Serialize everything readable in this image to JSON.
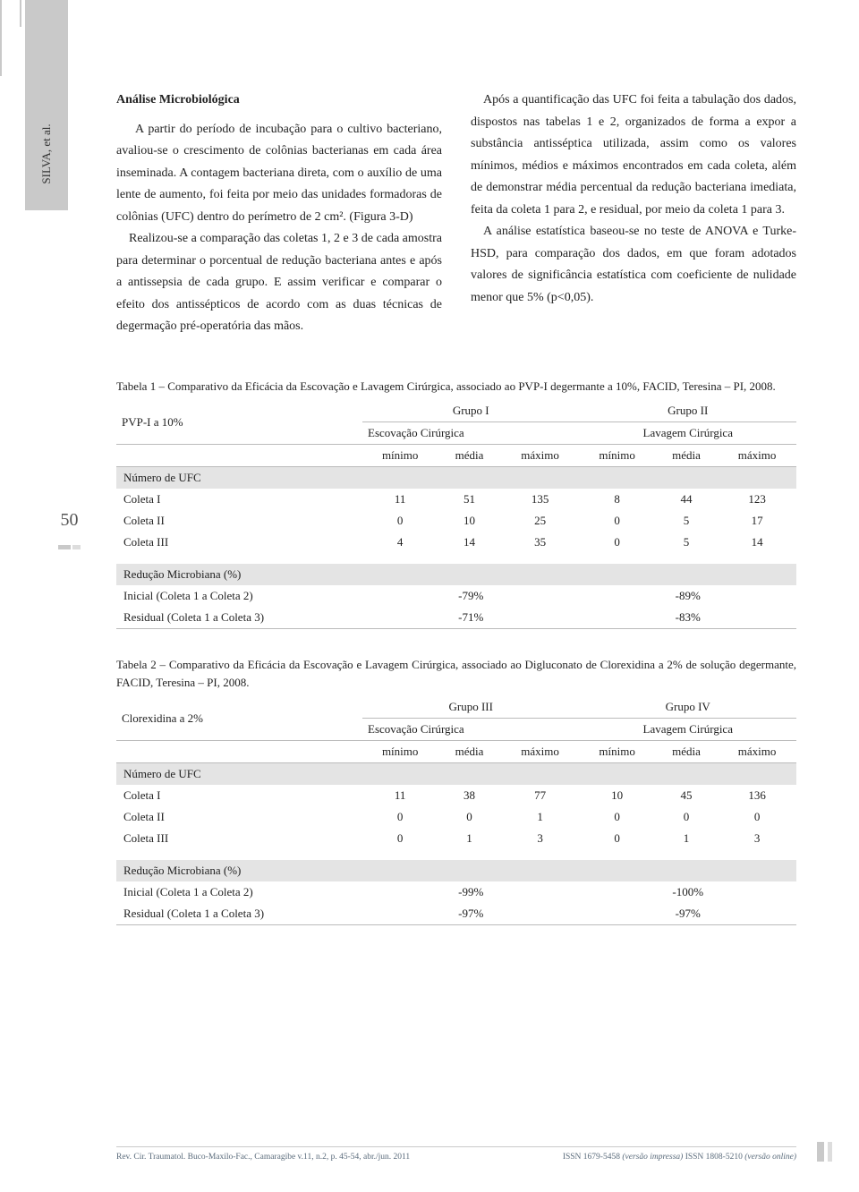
{
  "left_tab_text": "SILVA, et al.",
  "page_number": "50",
  "section_title": "Análise Microbiológica",
  "col_left": "A partir do período de incubação para o cultivo bacteriano, avaliou-se o crescimento de colônias bacterianas em cada área inseminada. A contagem bacteriana direta, com o auxílio de uma lente de aumento, foi feita por meio das unidades formadoras de colônias (UFC) dentro do perímetro de 2 cm². (Figura 3-D)\n Realizou-se a comparação das coletas 1, 2 e 3 de cada amostra para determinar o porcentual de redução bacteriana antes e após a antissepsia de cada grupo. E assim verificar e comparar o efeito dos antissépticos de acordo com as duas técnicas de degermação pré-operatória das mãos.",
  "col_right": " Após a quantificação das UFC foi feita a tabulação dos dados, dispostos nas tabelas 1 e 2, organizados de forma a expor a substância antisséptica utilizada, assim como os valores mínimos, médios e máximos encontrados em cada coleta, além de demonstrar média percentual da redução bacteriana imediata, feita da coleta 1 para 2, e residual, por meio da coleta 1 para 3.\n A análise estatística baseou-se no teste de ANOVA e Turke-HSD, para comparação dos dados, em que foram adotados valores de significância estatística com coeficiente de nulidade menor que 5% (p<0,05).",
  "table1": {
    "caption": "Tabela 1 – Comparativo da Eficácia da Escovação e Lavagem Cirúrgica, associado ao PVP-I degermante a 10%, FACID, Teresina – PI, 2008.",
    "row_header": "PVP-I a 10%",
    "group1": "Grupo I",
    "group2": "Grupo II",
    "sub1": "Escovação Cirúrgica",
    "sub2": "Lavagem Cirúrgica",
    "cols": [
      "mínimo",
      "média",
      "máximo",
      "mínimo",
      "média",
      "máximo"
    ],
    "section_a": "Número de UFC",
    "rows_a": [
      {
        "label": "Coleta I",
        "values": [
          "11",
          "51",
          "135",
          "8",
          "44",
          "123"
        ]
      },
      {
        "label": "Coleta II",
        "values": [
          "0",
          "10",
          "25",
          "0",
          "5",
          "17"
        ]
      },
      {
        "label": "Coleta III",
        "values": [
          "4",
          "14",
          "35",
          "0",
          "5",
          "14"
        ]
      }
    ],
    "section_b": "Redução Microbiana (%)",
    "rows_b": [
      {
        "label": "Inicial (Coleta 1 a Coleta 2)",
        "g1": "-79%",
        "g2": "-89%"
      },
      {
        "label": "Residual (Coleta 1 a Coleta 3)",
        "g1": "-71%",
        "g2": "-83%"
      }
    ]
  },
  "table2": {
    "caption": "Tabela 2 – Comparativo da Eficácia da Escovação e Lavagem Cirúrgica, associado ao Digluconato de Clorexidina a 2% de solução degermante, FACID, Teresina – PI, 2008.",
    "row_header": "Clorexidina a 2%",
    "group1": "Grupo III",
    "group2": "Grupo IV",
    "sub1": "Escovação Cirúrgica",
    "sub2": "Lavagem Cirúrgica",
    "cols": [
      "mínimo",
      "média",
      "máximo",
      "mínimo",
      "média",
      "máximo"
    ],
    "section_a": "Número de UFC",
    "rows_a": [
      {
        "label": "Coleta I",
        "values": [
          "11",
          "38",
          "77",
          "10",
          "45",
          "136"
        ]
      },
      {
        "label": "Coleta II",
        "values": [
          "0",
          "0",
          "1",
          "0",
          "0",
          "0"
        ]
      },
      {
        "label": "Coleta III",
        "values": [
          "0",
          "1",
          "3",
          "0",
          "1",
          "3"
        ]
      }
    ],
    "section_b": "Redução Microbiana (%)",
    "rows_b": [
      {
        "label": "Inicial (Coleta 1 a Coleta 2)",
        "g1": "-99%",
        "g2": "-100%"
      },
      {
        "label": "Residual (Coleta 1 a Coleta 3)",
        "g1": "-97%",
        "g2": "-97%"
      }
    ]
  },
  "footer_left": "Rev. Cir. Traumatol. Buco-Maxilo-Fac., Camaragibe v.11, n.2, p. 45-54, abr./jun. 2011",
  "footer_right_a": "ISSN 1679-5458 ",
  "footer_right_b": "(versão impressa) ",
  "footer_right_c": "ISSN 1808-5210 ",
  "footer_right_d": "(versão online)"
}
